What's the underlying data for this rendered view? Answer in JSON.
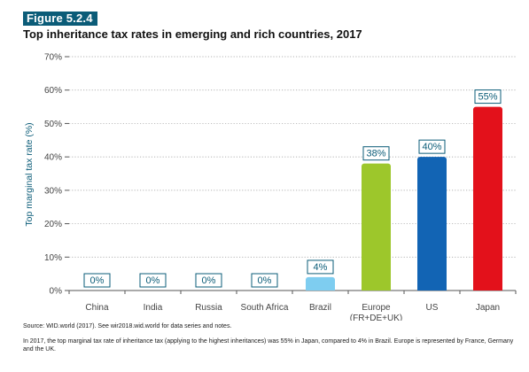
{
  "figure_label": "Figure 5.2.4",
  "chart_data": {
    "type": "bar",
    "title": "Top inheritance tax rates in emerging and rich countries, 2017",
    "ylabel": "Top marginal tax rate (%)",
    "xlabel": "",
    "ylim": [
      0,
      70
    ],
    "yticks": [
      0,
      10,
      20,
      30,
      40,
      50,
      60,
      70
    ],
    "ytick_labels": [
      "0%",
      "10%",
      "20%",
      "30%",
      "40%",
      "50%",
      "60%",
      "70%"
    ],
    "grid": "horizontal dotted",
    "categories": [
      [
        "China"
      ],
      [
        "India"
      ],
      [
        "Russia"
      ],
      [
        "South Africa"
      ],
      [
        "Brazil"
      ],
      [
        "Europe",
        "(FR+DE+UK)"
      ],
      [
        "US"
      ],
      [
        "Japan"
      ]
    ],
    "values": [
      0,
      0,
      0,
      0,
      4,
      38,
      40,
      55
    ],
    "value_labels": [
      "0%",
      "0%",
      "0%",
      "0%",
      "4%",
      "38%",
      "40%",
      "55%"
    ],
    "colors": [
      "#0b5c78",
      "#0b5c78",
      "#0b5c78",
      "#0b5c78",
      "#7ecdf0",
      "#9dc72b",
      "#1264b4",
      "#e3111b"
    ]
  },
  "source": "Source: WID.world (2017). See wir2018.wid.world for data series and notes.",
  "note": "In 2017, the top marginal tax rate of inheritance tax (applying to the highest inheritances) was 55% in Japan, compared to 4% in Brazil. Europe is represented by France, Germany and the UK."
}
